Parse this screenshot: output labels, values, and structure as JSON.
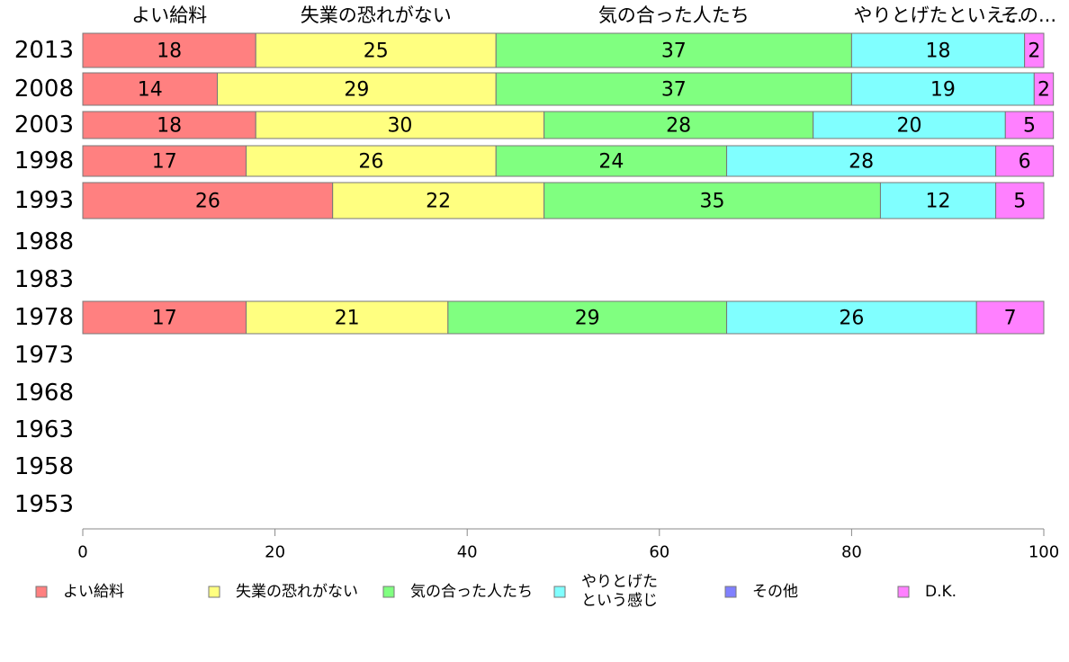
{
  "chart_data": {
    "type": "bar",
    "orientation": "horizontal",
    "stacked": true,
    "normalized": true,
    "categories": [
      "2013",
      "2008",
      "2003",
      "1998",
      "1993",
      "1988",
      "1983",
      "1978",
      "1973",
      "1968",
      "1963",
      "1958",
      "1953"
    ],
    "series": [
      {
        "name": "よい給料",
        "color": "#ff8080",
        "values": [
          18,
          14,
          18,
          17,
          26,
          null,
          null,
          17,
          null,
          null,
          null,
          null,
          null
        ]
      },
      {
        "name": "失業の恐れがない",
        "color": "#ffff80",
        "values": [
          25,
          29,
          30,
          26,
          22,
          null,
          null,
          21,
          null,
          null,
          null,
          null,
          null
        ]
      },
      {
        "name": "気の合った人たち",
        "color": "#80ff80",
        "values": [
          37,
          37,
          28,
          24,
          35,
          null,
          null,
          29,
          null,
          null,
          null,
          null,
          null
        ]
      },
      {
        "name": "やりとげたという感じ",
        "color": "#80ffff",
        "values": [
          18,
          19,
          20,
          28,
          12,
          null,
          null,
          26,
          null,
          null,
          null,
          null,
          null
        ]
      },
      {
        "name": "その他",
        "color": "#8080ff",
        "values": [
          0,
          0,
          0,
          0,
          0,
          null,
          null,
          0,
          null,
          null,
          null,
          null,
          null
        ]
      },
      {
        "name": "D.K.",
        "color": "#ff80ff",
        "values": [
          2,
          2,
          5,
          6,
          5,
          null,
          null,
          7,
          null,
          null,
          null,
          null,
          null
        ]
      }
    ],
    "top_labels": [
      "よい給料",
      "失業の恐れがない",
      "気の合った人たち",
      "やりとげたといえ...",
      "その..."
    ],
    "legend_labels": [
      [
        "よい給料"
      ],
      [
        "失業の恐れがない"
      ],
      [
        "気の合った人たち"
      ],
      [
        "やりとげた",
        "という感じ"
      ],
      [
        "その他"
      ],
      [
        "D.K."
      ]
    ],
    "xticks": [
      0,
      20,
      40,
      60,
      80,
      100
    ],
    "xlim": [
      0,
      100
    ],
    "legend_position": "bottom",
    "grid": false
  }
}
